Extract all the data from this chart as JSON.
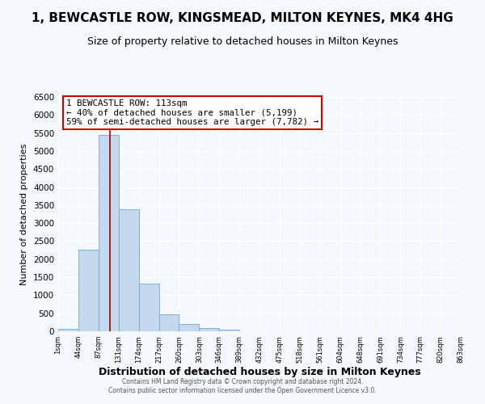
{
  "title": "1, BEWCASTLE ROW, KINGSMEAD, MILTON KEYNES, MK4 4HG",
  "subtitle": "Size of property relative to detached houses in Milton Keynes",
  "xlabel": "Distribution of detached houses by size in Milton Keynes",
  "ylabel": "Number of detached properties",
  "bar_values": [
    75,
    2275,
    5450,
    3375,
    1325,
    475,
    200,
    100,
    50,
    0,
    0,
    0,
    0,
    0,
    0,
    0,
    0,
    0,
    0,
    0
  ],
  "bin_labels": [
    "1sqm",
    "44sqm",
    "87sqm",
    "131sqm",
    "174sqm",
    "217sqm",
    "260sqm",
    "303sqm",
    "346sqm",
    "389sqm",
    "432sqm",
    "475sqm",
    "518sqm",
    "561sqm",
    "604sqm",
    "648sqm",
    "691sqm",
    "734sqm",
    "777sqm",
    "820sqm",
    "863sqm"
  ],
  "bar_color": "#c5d8ee",
  "bar_edge_color": "#6ea8d5",
  "vline_x": 2.59,
  "vline_color": "#990000",
  "annotation_title": "1 BEWCASTLE ROW: 113sqm",
  "annotation_line1": "← 40% of detached houses are smaller (5,199)",
  "annotation_line2": "59% of semi-detached houses are larger (7,782) →",
  "annotation_box_facecolor": "#ffffff",
  "annotation_box_edgecolor": "#cc0000",
  "ylim": [
    0,
    6500
  ],
  "yticks": [
    0,
    500,
    1000,
    1500,
    2000,
    2500,
    3000,
    3500,
    4000,
    4500,
    5000,
    5500,
    6000,
    6500
  ],
  "footer_line1": "Contains HM Land Registry data © Crown copyright and database right 2024.",
  "footer_line2": "Contains public sector information licensed under the Open Government Licence v3.0.",
  "bg_color": "#f5f8fd",
  "plot_bg_color": "#f5f8fd",
  "grid_color": "#ffffff",
  "title_fontsize": 11,
  "subtitle_fontsize": 9,
  "xlabel_fontsize": 9,
  "ylabel_fontsize": 8
}
